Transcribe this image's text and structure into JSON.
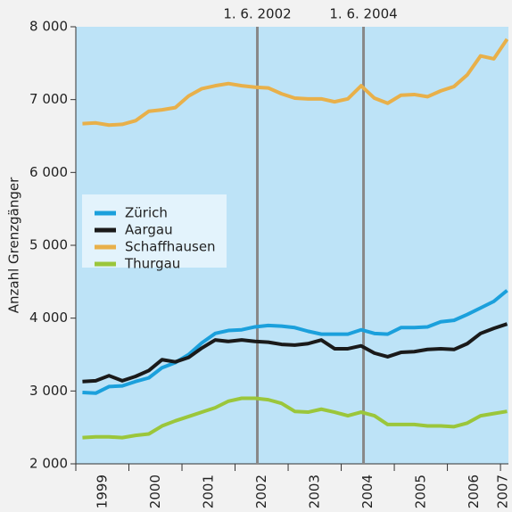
{
  "chart_data": {
    "type": "line",
    "ylabel": "Anzahl Grenzgänger",
    "x": [
      1999.125,
      1999.375,
      1999.625,
      1999.875,
      2000.125,
      2000.375,
      2000.625,
      2000.875,
      2001.125,
      2001.375,
      2001.625,
      2001.875,
      2002.125,
      2002.375,
      2002.625,
      2002.875,
      2003.125,
      2003.375,
      2003.625,
      2003.875,
      2004.125,
      2004.375,
      2004.625,
      2004.875,
      2005.125,
      2005.375,
      2005.625,
      2005.875,
      2006.125,
      2006.375,
      2006.625,
      2006.875,
      2007.125
    ],
    "series": [
      {
        "name": "Zürich",
        "color": "#1ba0dc",
        "values": [
          2980,
          2970,
          3060,
          3070,
          3130,
          3180,
          3320,
          3390,
          3500,
          3660,
          3790,
          3830,
          3840,
          3880,
          3900,
          3890,
          3870,
          3820,
          3780,
          3780,
          3780,
          3840,
          3790,
          3780,
          3870,
          3870,
          3880,
          3950,
          3970,
          4050,
          4140,
          4230,
          4380
        ]
      },
      {
        "name": "Aargau",
        "color": "#1a1a1a",
        "values": [
          3130,
          3140,
          3210,
          3140,
          3200,
          3280,
          3430,
          3400,
          3460,
          3590,
          3700,
          3680,
          3700,
          3680,
          3670,
          3640,
          3630,
          3650,
          3700,
          3580,
          3580,
          3620,
          3520,
          3470,
          3530,
          3540,
          3570,
          3580,
          3570,
          3650,
          3790,
          3860,
          3920
        ]
      },
      {
        "name": "Schaffhausen",
        "color": "#e8b04a",
        "values": [
          6670,
          6680,
          6650,
          6660,
          6710,
          6840,
          6860,
          6890,
          7050,
          7150,
          7190,
          7220,
          7190,
          7170,
          7160,
          7080,
          7020,
          7010,
          7010,
          6970,
          7010,
          7190,
          7020,
          6950,
          7060,
          7070,
          7040,
          7120,
          7180,
          7340,
          7600,
          7560,
          7830
        ]
      },
      {
        "name": "Thurgau",
        "color": "#9bc63b",
        "values": [
          2360,
          2370,
          2370,
          2360,
          2390,
          2410,
          2520,
          2590,
          2650,
          2710,
          2770,
          2860,
          2900,
          2900,
          2880,
          2830,
          2720,
          2710,
          2750,
          2710,
          2660,
          2710,
          2660,
          2540,
          2540,
          2540,
          2520,
          2520,
          2510,
          2560,
          2660,
          2690,
          2720
        ]
      }
    ],
    "xlim": [
      1999,
      2007.15
    ],
    "xticks": [
      1999,
      2000,
      2001,
      2002,
      2003,
      2004,
      2005,
      2006,
      2007
    ],
    "ylim": [
      2000,
      8000
    ],
    "yticks": [
      {
        "value": 2000,
        "label": "2 000"
      },
      {
        "value": 3000,
        "label": "3 000"
      },
      {
        "value": 4000,
        "label": "4 000"
      },
      {
        "value": 5000,
        "label": "5 000"
      },
      {
        "value": 6000,
        "label": "6 000"
      },
      {
        "value": 7000,
        "label": "7 000"
      },
      {
        "value": 8000,
        "label": "8 000"
      }
    ],
    "annotations": [
      {
        "text": "1. 6. 2002",
        "x": 2002.42
      },
      {
        "text": "1. 6. 2004",
        "x": 2004.42
      }
    ],
    "legend": "left"
  }
}
